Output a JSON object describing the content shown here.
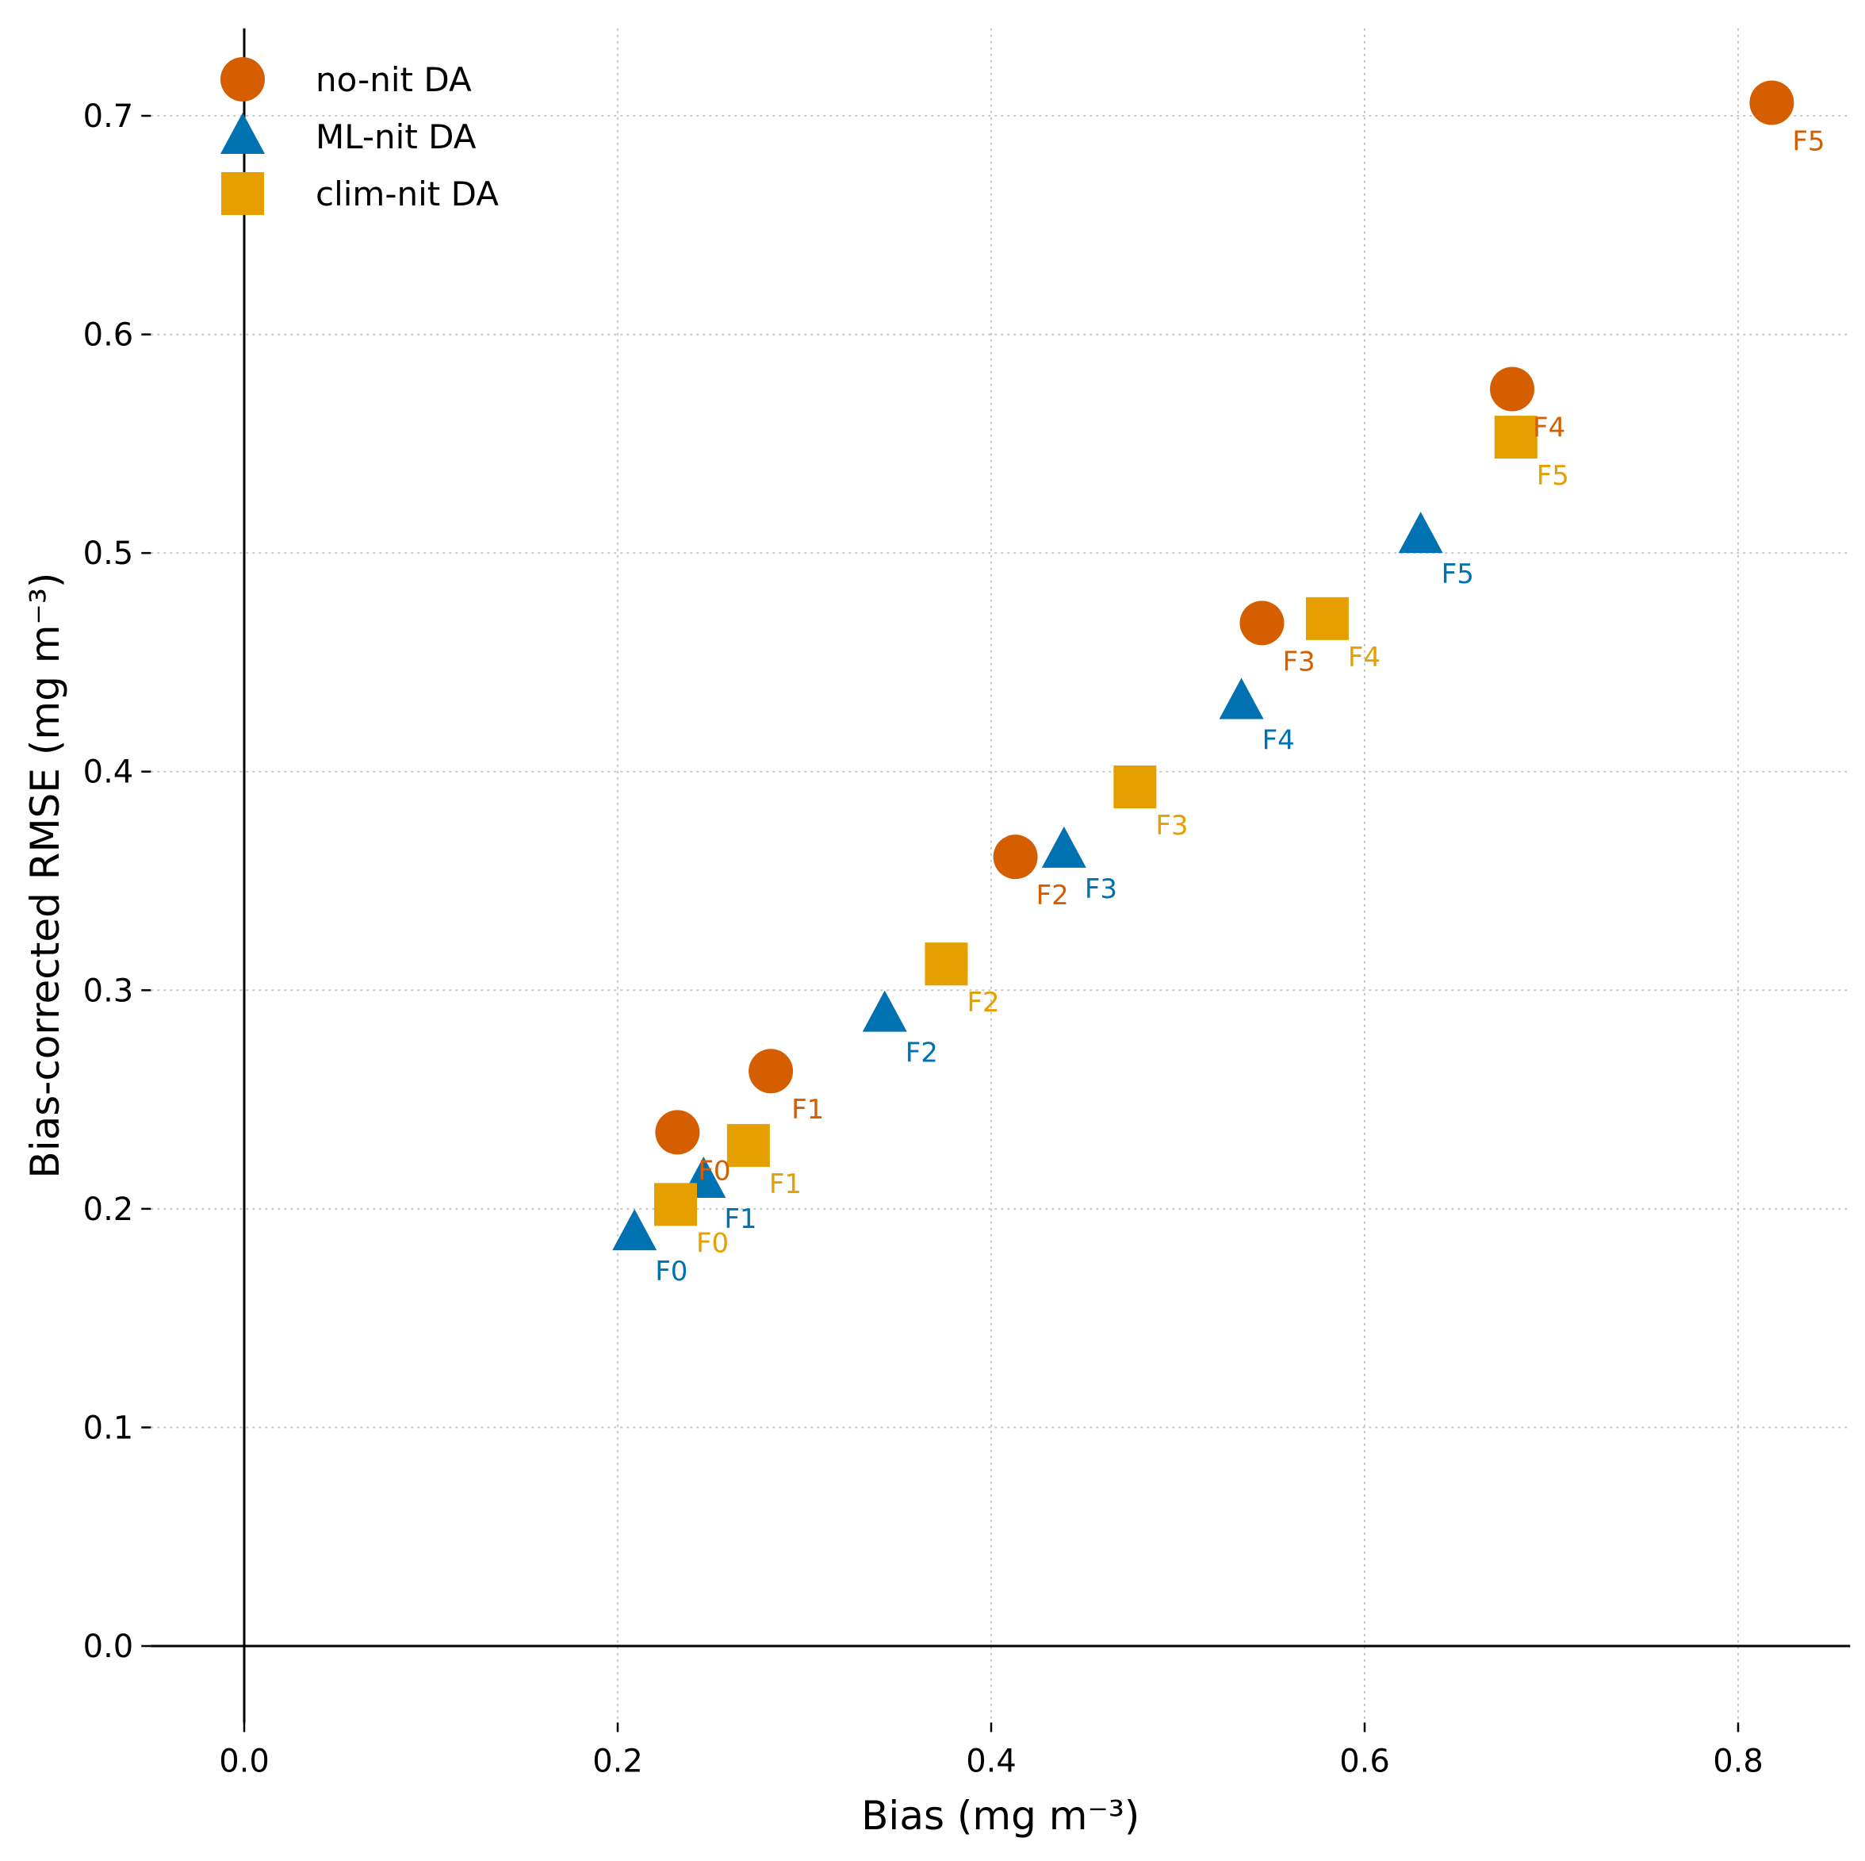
{
  "chart_data": {
    "type": "scatter",
    "xlabel": "Bias (mg m⁻³)",
    "ylabel": "Bias-corrected RMSE (mg m⁻³)",
    "xlim": [
      -0.05,
      0.86
    ],
    "ylim": [
      -0.035,
      0.74
    ],
    "xticks": [
      0.0,
      0.2,
      0.4,
      0.6,
      0.8
    ],
    "xtick_labels": [
      "0.0",
      "0.2",
      "0.4",
      "0.6",
      "0.8"
    ],
    "yticks": [
      0.0,
      0.1,
      0.2,
      0.3,
      0.4,
      0.5,
      0.6,
      0.7
    ],
    "ytick_labels": [
      "0.0",
      "0.1",
      "0.2",
      "0.3",
      "0.4",
      "0.5",
      "0.6",
      "0.7"
    ],
    "grid": true,
    "legend_position": "top-left",
    "series": [
      {
        "name": "no-nit DA",
        "marker": "circle",
        "color": "#d55e00",
        "points": [
          {
            "label": "F0",
            "x": 0.232,
            "y": 0.235
          },
          {
            "label": "F1",
            "x": 0.282,
            "y": 0.263
          },
          {
            "label": "F2",
            "x": 0.413,
            "y": 0.361
          },
          {
            "label": "F3",
            "x": 0.545,
            "y": 0.468
          },
          {
            "label": "F4",
            "x": 0.679,
            "y": 0.575
          },
          {
            "label": "F5",
            "x": 0.818,
            "y": 0.706
          }
        ]
      },
      {
        "name": "ML-nit DA",
        "marker": "triangle",
        "color": "#0072b2",
        "points": [
          {
            "label": "F0",
            "x": 0.209,
            "y": 0.189
          },
          {
            "label": "F1",
            "x": 0.246,
            "y": 0.213
          },
          {
            "label": "F2",
            "x": 0.343,
            "y": 0.289
          },
          {
            "label": "F3",
            "x": 0.439,
            "y": 0.364
          },
          {
            "label": "F4",
            "x": 0.534,
            "y": 0.432
          },
          {
            "label": "F5",
            "x": 0.63,
            "y": 0.508
          }
        ]
      },
      {
        "name": "clim-nit DA",
        "marker": "square",
        "color": "#e69f00",
        "points": [
          {
            "label": "F0",
            "x": 0.231,
            "y": 0.202
          },
          {
            "label": "F1",
            "x": 0.27,
            "y": 0.229
          },
          {
            "label": "F2",
            "x": 0.376,
            "y": 0.312
          },
          {
            "label": "F3",
            "x": 0.477,
            "y": 0.393
          },
          {
            "label": "F4",
            "x": 0.58,
            "y": 0.47
          },
          {
            "label": "F5",
            "x": 0.681,
            "y": 0.553
          }
        ]
      }
    ]
  }
}
